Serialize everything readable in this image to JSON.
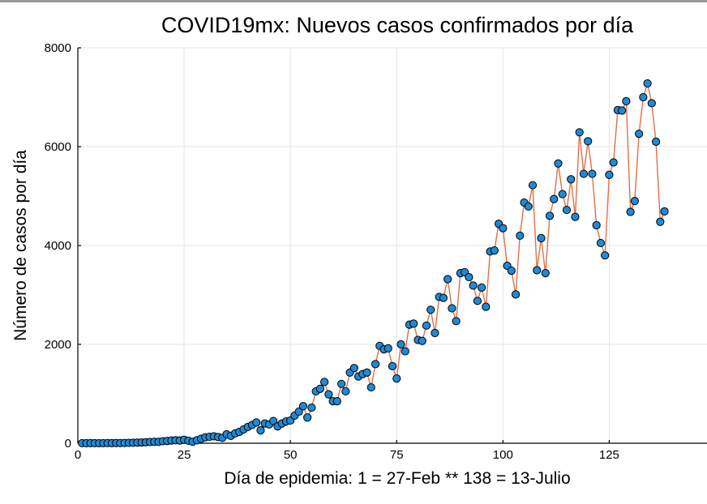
{
  "chart_data": {
    "type": "line",
    "title": "COVID19mx: Nuevos casos confirmados por día",
    "xlabel": "Día de epidemia: 1 = 27-Feb ** 138 = 13-Julio",
    "ylabel": "Número de casos por día",
    "xlim": [
      0,
      148
    ],
    "ylim": [
      0,
      8000
    ],
    "xticks": [
      0,
      25,
      50,
      75,
      100,
      125
    ],
    "yticks": [
      0,
      2000,
      4000,
      6000,
      8000
    ],
    "grid": true,
    "legend": "none",
    "line_color": "#e26f46",
    "marker_color": "#1f8ad6",
    "series": [
      {
        "name": "Nuevos casos",
        "x": [
          1,
          2,
          3,
          4,
          5,
          6,
          7,
          8,
          9,
          10,
          11,
          12,
          13,
          14,
          15,
          16,
          17,
          18,
          19,
          20,
          21,
          22,
          23,
          24,
          25,
          26,
          27,
          28,
          29,
          30,
          31,
          32,
          33,
          34,
          35,
          36,
          37,
          38,
          39,
          40,
          41,
          42,
          43,
          44,
          45,
          46,
          47,
          48,
          49,
          50,
          51,
          52,
          53,
          54,
          55,
          56,
          57,
          58,
          59,
          60,
          61,
          62,
          63,
          64,
          65,
          66,
          67,
          68,
          69,
          70,
          71,
          72,
          73,
          74,
          75,
          76,
          77,
          78,
          79,
          80,
          81,
          82,
          83,
          84,
          85,
          86,
          87,
          88,
          89,
          90,
          91,
          92,
          93,
          94,
          95,
          96,
          97,
          98,
          99,
          100,
          101,
          102,
          103,
          104,
          105,
          106,
          107,
          108,
          109,
          110,
          111,
          112,
          113,
          114,
          115,
          116,
          117,
          118,
          119,
          120,
          121,
          122,
          123,
          124,
          125,
          126,
          127,
          128,
          129,
          130,
          131,
          132,
          133,
          134,
          135,
          136,
          137,
          138
        ],
        "values": [
          1,
          0,
          2,
          1,
          0,
          1,
          3,
          2,
          4,
          3,
          5,
          7,
          10,
          12,
          15,
          20,
          25,
          30,
          29,
          40,
          45,
          55,
          60,
          55,
          70,
          50,
          30,
          60,
          90,
          120,
          130,
          140,
          125,
          110,
          180,
          150,
          200,
          230,
          280,
          330,
          370,
          420,
          260,
          400,
          380,
          450,
          340,
          400,
          440,
          460,
          560,
          640,
          750,
          520,
          720,
          1050,
          1100,
          1240,
          990,
          850,
          850,
          1200,
          1050,
          1430,
          1520,
          1350,
          1400,
          1430,
          1130,
          1600,
          1970,
          1900,
          1920,
          1560,
          1310,
          2000,
          1860,
          2400,
          2420,
          2090,
          2070,
          2380,
          2700,
          2230,
          2960,
          2940,
          3320,
          2730,
          2470,
          3440,
          3460,
          3360,
          3190,
          2880,
          3150,
          2760,
          3880,
          3900,
          4440,
          4350,
          3590,
          3490,
          3010,
          4200,
          4870,
          4790,
          5220,
          3500,
          4150,
          3440,
          4600,
          4940,
          5660,
          5040,
          4720,
          5340,
          4580,
          6290,
          5450,
          6110,
          5450,
          4410,
          4050,
          3800,
          5430,
          5680,
          6740,
          6730,
          6920,
          4680,
          4900,
          6260,
          7000,
          7280,
          6880,
          6100,
          4480,
          4690
        ]
      }
    ]
  }
}
